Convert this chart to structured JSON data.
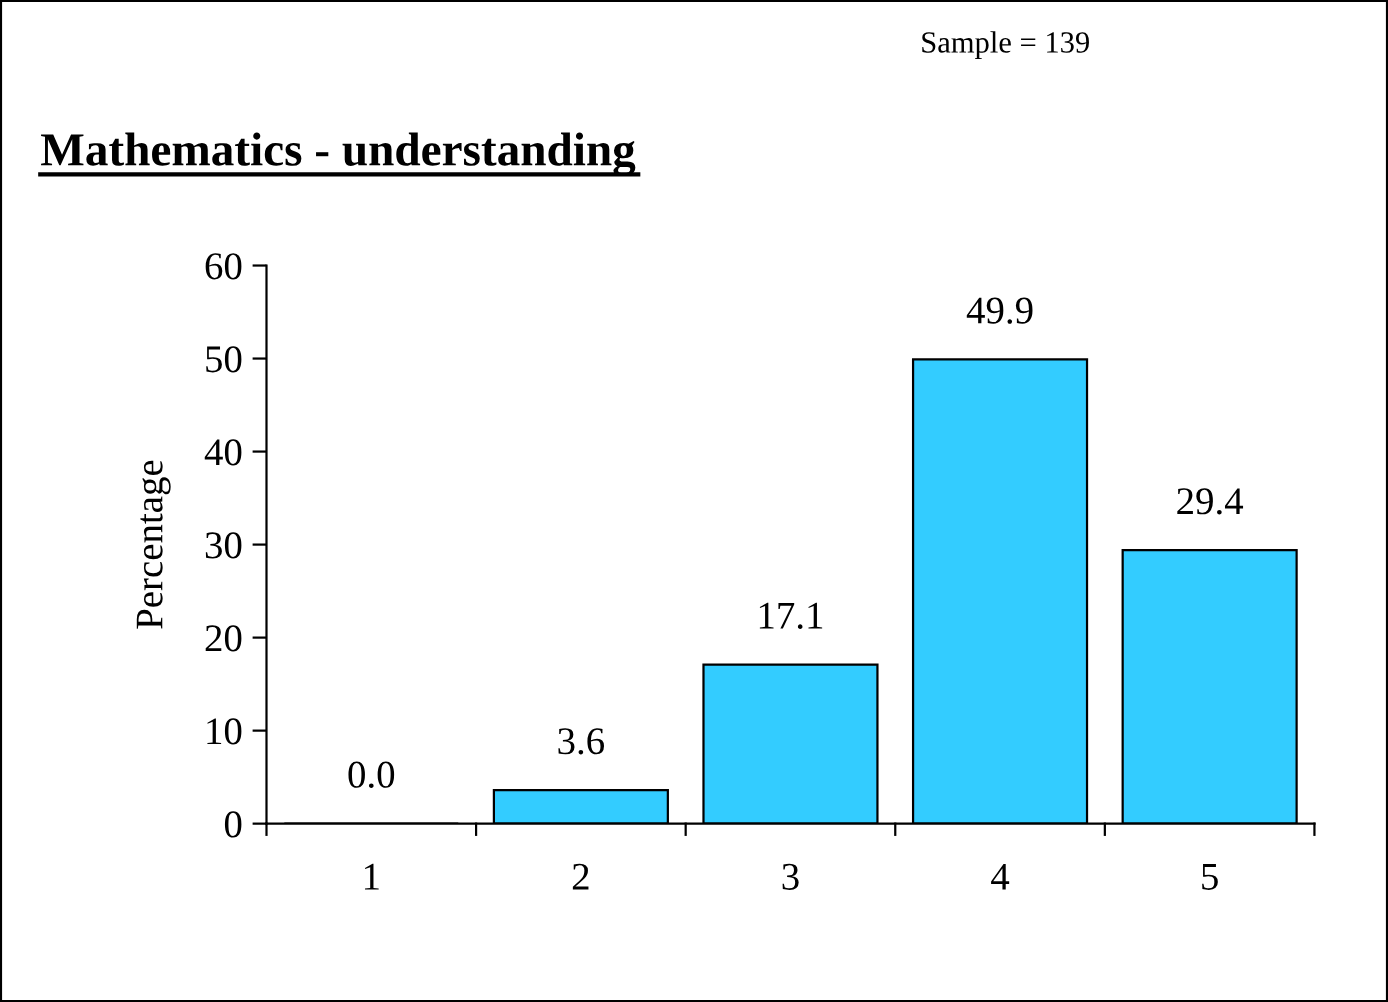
{
  "chart_data": {
    "type": "bar",
    "title": "Mathematics - understanding",
    "ylabel": "Percentage",
    "annotations": [
      "Sample = 139"
    ],
    "categories": [
      "1",
      "2",
      "3",
      "4",
      "5"
    ],
    "values": [
      0.0,
      3.6,
      17.1,
      49.9,
      29.4
    ],
    "color": "#33ccff",
    "ylim": [
      0,
      60
    ],
    "yticks": [
      0,
      10,
      20,
      30,
      40,
      50,
      60
    ],
    "value_labels": [
      "0.0",
      "3.6",
      "17.1",
      "49.9",
      "29.4"
    ],
    "grid": false,
    "legend": false
  }
}
